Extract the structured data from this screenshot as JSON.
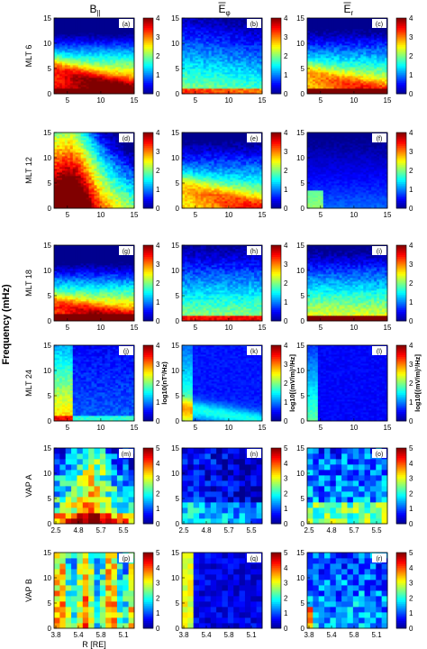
{
  "figure": {
    "column_headers": [
      "B_||",
      "Ē_φ",
      "Ē_r"
    ],
    "y_axis_label": "Frequency (mHz)",
    "x_axis_label": "R [RE]"
  },
  "chart_data": {
    "type": "heatmap",
    "columns": [
      "B_||",
      "Ē_φ",
      "Ē_r"
    ],
    "rows": [
      {
        "label": "MLT 6",
        "xticks": [
          "5",
          "10",
          "15"
        ],
        "xlim": [
          3,
          15
        ],
        "colorbar": {
          "ticks": [
            "0",
            "1",
            "2",
            "3",
            "4"
          ],
          "range": [
            0,
            4
          ]
        },
        "panels": [
          {
            "id": "(a)",
            "pattern": "mlt6_b"
          },
          {
            "id": "(b)",
            "pattern": "mlt6_ephi"
          },
          {
            "id": "(c)",
            "pattern": "mlt6_er"
          }
        ]
      },
      {
        "label": "MLT 12",
        "xticks": [
          "5",
          "10",
          "15"
        ],
        "xlim": [
          3,
          15
        ],
        "colorbar": {
          "ticks": [
            "0",
            "1",
            "2",
            "3",
            "4"
          ],
          "range": [
            0,
            4
          ]
        },
        "panels": [
          {
            "id": "(d)",
            "pattern": "mlt12_b"
          },
          {
            "id": "(e)",
            "pattern": "mlt12_ephi"
          },
          {
            "id": "(f)",
            "pattern": "mlt12_er"
          }
        ]
      },
      {
        "label": "MLT 18",
        "xticks": [
          "5",
          "10",
          "15"
        ],
        "xlim": [
          3,
          15
        ],
        "colorbar": {
          "ticks": [
            "0",
            "1",
            "2",
            "3",
            "4"
          ],
          "range": [
            0,
            4
          ]
        },
        "panels": [
          {
            "id": "(g)",
            "pattern": "mlt18_b"
          },
          {
            "id": "(h)",
            "pattern": "mlt18_ephi"
          },
          {
            "id": "(i)",
            "pattern": "mlt18_er"
          }
        ]
      },
      {
        "label": "MLT 24",
        "xticks": [
          "5",
          "10",
          "15"
        ],
        "xlim": [
          3,
          15
        ],
        "colorbar": {
          "ticks": [
            "0",
            "1",
            "2",
            "3",
            "4"
          ],
          "range": [
            0,
            4
          ]
        },
        "colorbar_labels": [
          "log10(nT²/Hz)",
          "log10[(mV/m)²/Hz]",
          "log10[(mV/m)²/Hz]"
        ],
        "panels": [
          {
            "id": "(j)",
            "pattern": "mlt24_b"
          },
          {
            "id": "(k)",
            "pattern": "mlt24_ephi"
          },
          {
            "id": "(l)",
            "pattern": "mlt24_er"
          }
        ]
      },
      {
        "label": "VAP A",
        "xticks": [
          "2.5",
          "4.8",
          "5.7",
          "5.5"
        ],
        "xlim": [
          0,
          1
        ],
        "colorbar": {
          "ticks": [
            "0",
            "1",
            "2",
            "3",
            "4",
            "5"
          ],
          "range": [
            0,
            5
          ]
        },
        "panels": [
          {
            "id": "(m)",
            "pattern": "vapa_b"
          },
          {
            "id": "(n)",
            "pattern": "vapa_ephi"
          },
          {
            "id": "(o)",
            "pattern": "vapa_er"
          }
        ]
      },
      {
        "label": "VAP B",
        "xticks": [
          "3.8",
          "5.4",
          "5.8",
          "5.1"
        ],
        "xlim": [
          0,
          1
        ],
        "colorbar": {
          "ticks": [
            "0",
            "1",
            "2",
            "3",
            "4",
            "5"
          ],
          "range": [
            0,
            5
          ]
        },
        "panels": [
          {
            "id": "(p)",
            "pattern": "vapb_b"
          },
          {
            "id": "(q)",
            "pattern": "vapb_ephi"
          },
          {
            "id": "(r)",
            "pattern": "vapb_er"
          }
        ]
      }
    ],
    "yticks": [
      "0",
      "5",
      "10",
      "15"
    ],
    "ylim": [
      0,
      15
    ],
    "colormap": [
      "#00008f",
      "#0000ff",
      "#0080ff",
      "#00ffff",
      "#80ff80",
      "#ffff00",
      "#ff8000",
      "#ff0000",
      "#800000"
    ]
  }
}
